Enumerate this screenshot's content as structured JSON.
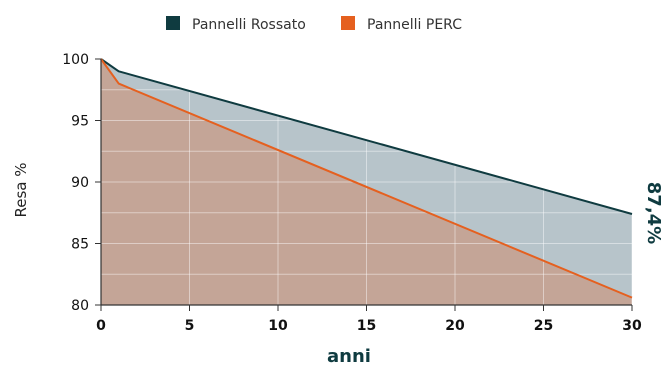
{
  "chart_data": {
    "type": "area",
    "title": "",
    "xlabel": "anni",
    "ylabel": "Resa %",
    "xlim": [
      0,
      30
    ],
    "ylim": [
      80,
      100
    ],
    "x_ticks": [
      "0",
      "5",
      "10",
      "15",
      "20",
      "25",
      "30"
    ],
    "y_ticks": [
      "80",
      "85",
      "90",
      "95",
      "100"
    ],
    "grid": true,
    "legend_position": "top-center",
    "series": [
      {
        "name": "Pannelli Rossato",
        "color": "#0f3b40",
        "fill": "#b7c4ca",
        "x": [
          0,
          1,
          30
        ],
        "y": [
          100,
          99,
          87.4
        ]
      },
      {
        "name": "Pannelli PERC",
        "color": "#e5601f",
        "fill": "#c4a597",
        "x": [
          0,
          1,
          30
        ],
        "y": [
          100,
          98,
          80.6
        ]
      }
    ],
    "annotation": {
      "text": "87,4%",
      "color": "#0f3b40"
    }
  }
}
